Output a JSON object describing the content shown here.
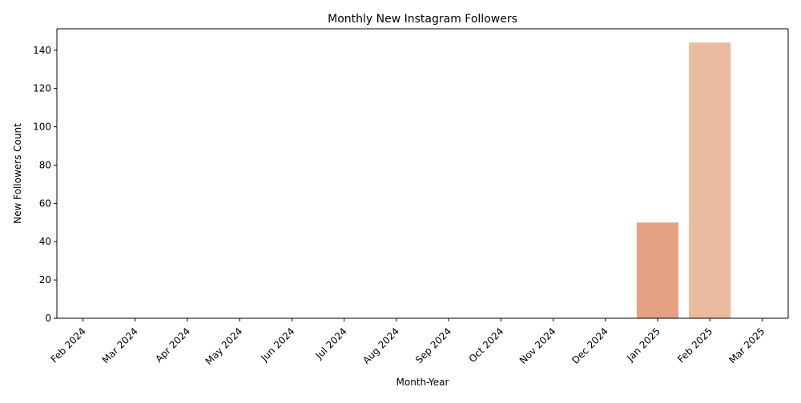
{
  "chart_data": {
    "type": "bar",
    "title": "Monthly New Instagram Followers",
    "xlabel": "Month-Year",
    "ylabel": "New Followers Count",
    "categories": [
      "Feb 2024",
      "Mar 2024",
      "Apr 2024",
      "May 2024",
      "Jun 2024",
      "Jul 2024",
      "Aug 2024",
      "Sep 2024",
      "Oct 2024",
      "Nov 2024",
      "Dec 2024",
      "Jan 2025",
      "Feb 2025",
      "Mar 2025"
    ],
    "values": [
      0,
      0,
      0,
      0,
      0,
      0,
      0,
      0,
      0,
      0,
      0,
      50,
      144,
      0
    ],
    "bar_colors": [
      "#f0c9a8",
      "#efc2a2",
      "#eebb9c",
      "#edb597",
      "#ebae91",
      "#eaa88b",
      "#e9a286",
      "#e79c80",
      "#e6967b",
      "#e59075",
      "#e48b70",
      "#e5a283",
      "#eabb9f",
      "#eec9b0"
    ],
    "ylim": [
      0,
      151.2
    ],
    "yticks": [
      0,
      20,
      40,
      60,
      80,
      100,
      120,
      140
    ],
    "grid": false,
    "legend": "none"
  }
}
